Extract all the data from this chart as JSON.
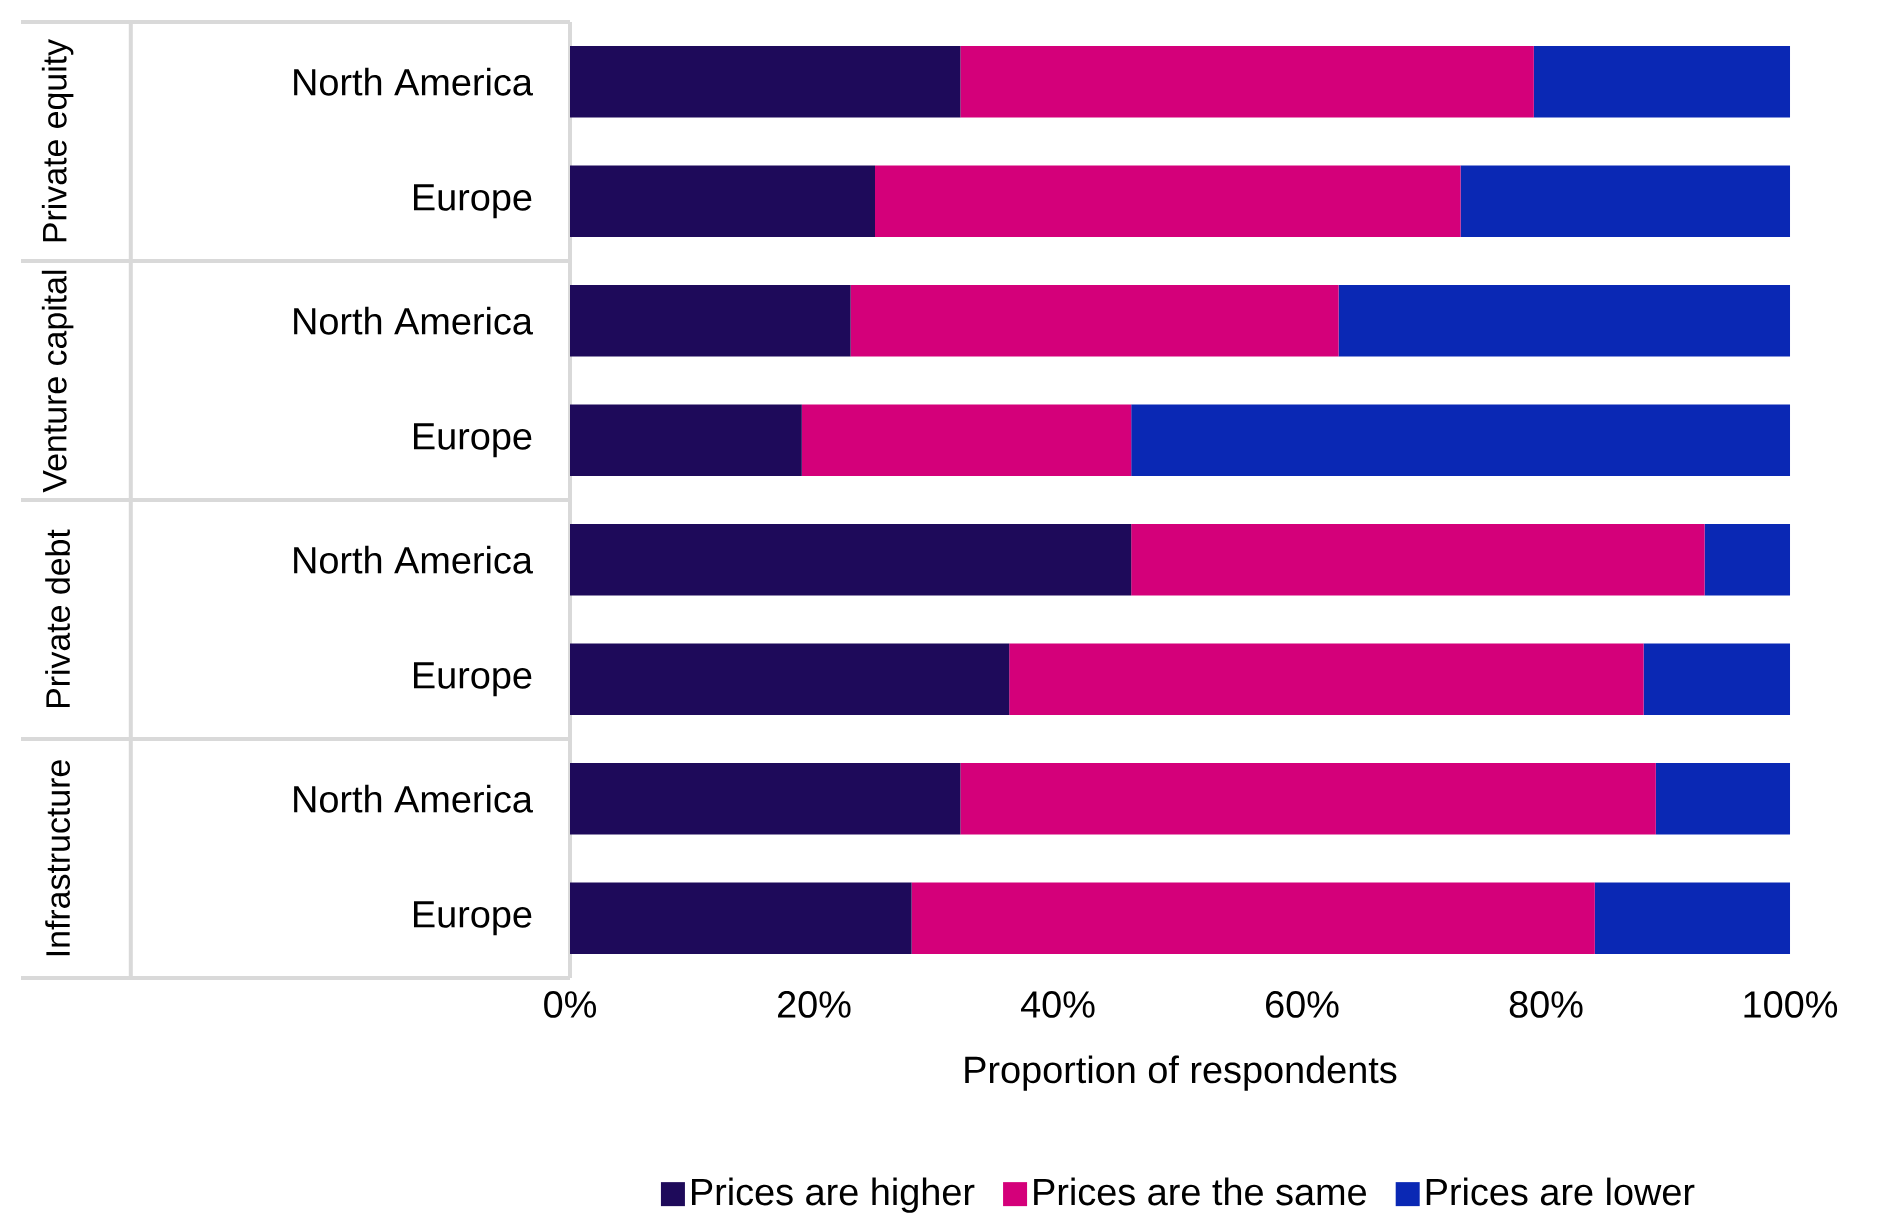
{
  "chart_data": {
    "type": "bar",
    "orientation": "horizontal",
    "stacked": true,
    "categories": [
      "North America",
      "Europe",
      "North America",
      "Europe",
      "North America",
      "Europe",
      "North America",
      "Europe"
    ],
    "series": [
      {
        "name": "Prices are higher",
        "color": "#1e0a5a",
        "values": [
          32,
          25,
          23,
          19,
          46,
          36,
          32,
          28
        ]
      },
      {
        "name": "Prices are the same",
        "color": "#d4007a",
        "values": [
          47,
          48,
          40,
          27,
          47,
          52,
          57,
          56
        ]
      },
      {
        "name": "Prices are lower",
        "color": "#0a28b4",
        "values": [
          21,
          27,
          37,
          54,
          7,
          12,
          11,
          16
        ]
      }
    ],
    "xlim": [
      0,
      100
    ],
    "xticks": [
      {
        "value": 0,
        "label": "0%"
      },
      {
        "value": 20,
        "label": "20%"
      },
      {
        "value": 40,
        "label": "40%"
      },
      {
        "value": 60,
        "label": "60%"
      },
      {
        "value": 80,
        "label": "80%"
      },
      {
        "value": 100,
        "label": "100%"
      }
    ],
    "xlabel": "Proportion of respondents",
    "annotations": [
      "Private equity",
      "Venture capital",
      "Private debt",
      "Infrastructure"
    ],
    "legend": "bottom",
    "grid": false
  }
}
